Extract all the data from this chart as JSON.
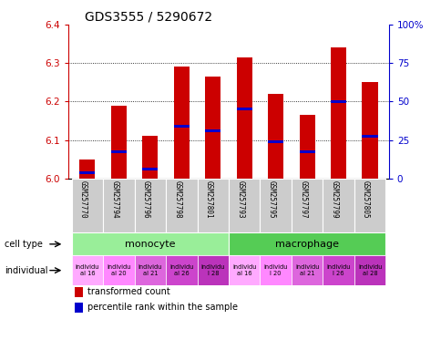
{
  "title": "GDS3555 / 5290672",
  "samples": [
    "GSM257770",
    "GSM257794",
    "GSM257796",
    "GSM257798",
    "GSM257801",
    "GSM257793",
    "GSM257795",
    "GSM257797",
    "GSM257799",
    "GSM257805"
  ],
  "bar_values": [
    6.05,
    6.19,
    6.11,
    6.29,
    6.265,
    6.315,
    6.22,
    6.165,
    6.34,
    6.25
  ],
  "bar_base": 6.0,
  "blue_marker_values": [
    6.015,
    6.07,
    6.025,
    6.135,
    6.125,
    6.18,
    6.095,
    6.07,
    6.2,
    6.11
  ],
  "ylim": [
    6.0,
    6.4
  ],
  "yticks_left": [
    6.0,
    6.1,
    6.2,
    6.3,
    6.4
  ],
  "yticks_right": [
    0,
    25,
    50,
    75,
    100
  ],
  "bar_color": "#cc0000",
  "blue_color": "#0000cc",
  "cell_type_monocyte": "monocyte",
  "cell_type_macrophage": "macrophage",
  "monocyte_indices": [
    0,
    1,
    2,
    3,
    4
  ],
  "macrophage_indices": [
    5,
    6,
    7,
    8,
    9
  ],
  "monocyte_color": "#99ee99",
  "macrophage_color": "#55cc55",
  "indiv_labels": [
    "individu\nal 16",
    "individu\nal 20",
    "individu\nal 21",
    "individu\nal 26",
    "individu\nl 28",
    "individu\nal 16",
    "individu\nl 20",
    "individu\nal 21",
    "individu\nl 26",
    "individu\nal 28"
  ],
  "indiv_colors": [
    "#ffaaff",
    "#ff88ff",
    "#dd66dd",
    "#cc44cc",
    "#bb33bb",
    "#ffaaff",
    "#ff88ff",
    "#dd66dd",
    "#cc44cc",
    "#bb33bb"
  ],
  "legend_red": "transformed count",
  "legend_blue": "percentile rank within the sample",
  "ylabel_left_color": "#cc0000",
  "ylabel_right_color": "#0000cc",
  "sample_box_color": "#cccccc",
  "title_fontsize": 10,
  "bar_width": 0.5
}
